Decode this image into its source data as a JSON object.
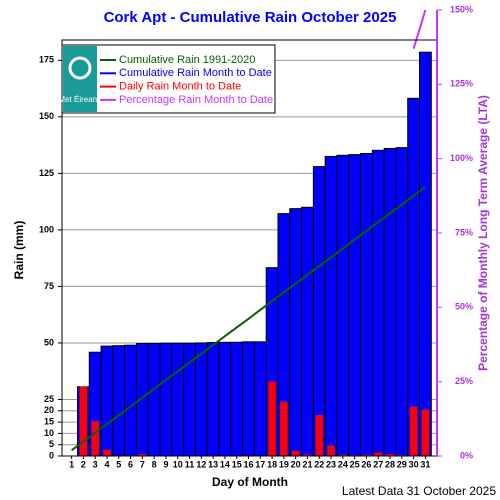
{
  "chart_data": {
    "type": "bar",
    "title": "Cork Apt - Cumulative Rain October   2025",
    "x_label": "Day of Month",
    "y_label": "Rain (mm)",
    "y2_label": "Percentage  of Monthly Long Term Average (LTA)",
    "footer": "Latest Data 31 October 2025",
    "logo_text": "Met Éireann",
    "categories": [
      "1",
      "2",
      "3",
      "4",
      "5",
      "6",
      "7",
      "8",
      "9",
      "10",
      "11",
      "12",
      "13",
      "14",
      "15",
      "16",
      "17",
      "18",
      "19",
      "20",
      "21",
      "22",
      "23",
      "24",
      "25",
      "26",
      "27",
      "28",
      "29",
      "30",
      "31"
    ],
    "series": [
      {
        "name": "Cumulative Rain 1991-2020",
        "type": "line",
        "color": "#006400",
        "values": [
          2.5,
          6.4,
          10.3,
          14.1,
          18.0,
          21.9,
          25.8,
          29.7,
          33.6,
          37.4,
          41.3,
          45.2,
          49.1,
          53.0,
          56.9,
          60.7,
          64.6,
          68.5,
          72.4,
          76.3,
          80.2,
          84.0,
          87.9,
          91.8,
          95.7,
          99.6,
          103.5,
          107.3,
          111.2,
          115.1,
          119.0
        ]
      },
      {
        "name": "Cumulative Rain Month to Date",
        "type": "bar",
        "color": "#0000ff",
        "values": [
          0,
          30.6,
          45.9,
          48.6,
          48.8,
          49.0,
          49.8,
          49.8,
          49.9,
          49.9,
          49.9,
          50.0,
          50.2,
          50.3,
          50.3,
          50.5,
          50.5,
          83.3,
          107.2,
          109.4,
          110.0,
          128.0,
          132.5,
          133.0,
          133.3,
          133.8,
          135.2,
          136.0,
          136.4,
          158.2,
          178.6
        ]
      },
      {
        "name": "Daily Rain Month to Date",
        "type": "bar",
        "color": "#ff0000",
        "values": [
          0,
          30.6,
          15.3,
          2.7,
          0.2,
          0.2,
          0.8,
          0,
          0.1,
          0,
          0,
          0.1,
          0.2,
          0.1,
          0,
          0.2,
          0,
          32.8,
          23.9,
          2.2,
          0.6,
          18.0,
          4.5,
          0.5,
          0.3,
          0.5,
          1.4,
          0.8,
          0.4,
          21.8,
          20.4
        ]
      },
      {
        "name": "Percentage Rain Month to Date",
        "type": "line",
        "color": "#cc33ff",
        "axis": "y2",
        "values": [
          null,
          null,
          null,
          null,
          null,
          null,
          null,
          null,
          null,
          null,
          null,
          null,
          null,
          null,
          null,
          null,
          null,
          null,
          null,
          null,
          null,
          null,
          null,
          null,
          null,
          null,
          null,
          null,
          null,
          137,
          150
        ]
      }
    ],
    "ylim": [
      0,
      184
    ],
    "yticks": [
      0,
      5,
      10,
      15,
      20,
      25,
      50,
      75,
      100,
      125,
      150,
      175
    ],
    "y2lim": [
      0,
      150
    ],
    "y2ticks": [
      {
        "value": 0,
        "label": "0%"
      },
      {
        "value": 25,
        "label": "25%"
      },
      {
        "value": 50,
        "label": "50%"
      },
      {
        "value": 75,
        "label": "75%"
      },
      {
        "value": 100,
        "label": "100%"
      },
      {
        "value": 125,
        "label": "125%"
      },
      {
        "value": 150,
        "label": "150%"
      }
    ],
    "grid": true,
    "legend": "upper left"
  }
}
